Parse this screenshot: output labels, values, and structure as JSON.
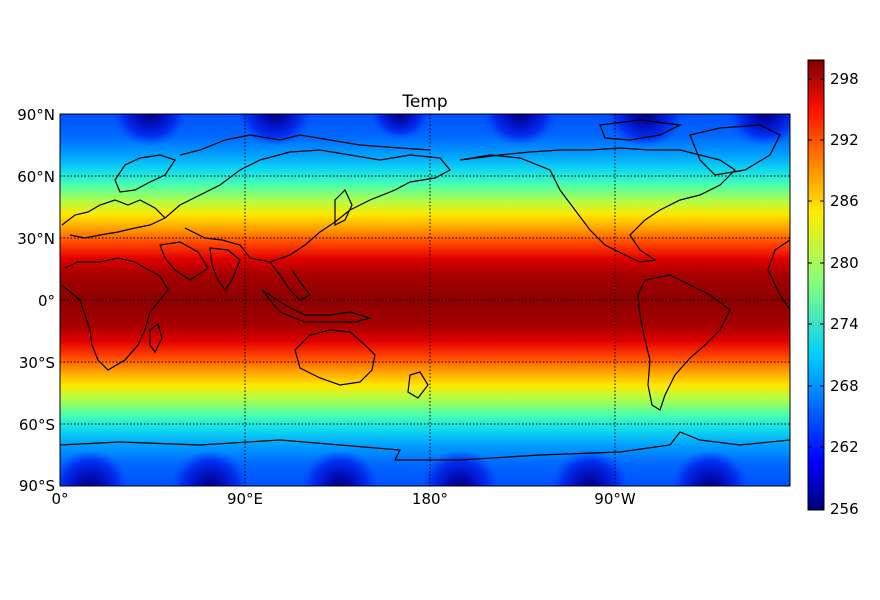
{
  "chart_data": {
    "type": "heatmap",
    "title": "Temp",
    "xlabel": "",
    "ylabel": "",
    "x_ticks": [
      "0°",
      "90°E",
      "180°",
      "90°W"
    ],
    "y_ticks": [
      "90°N",
      "60°N",
      "30°N",
      "0°",
      "30°S",
      "60°S",
      "90°S"
    ],
    "colorbar": {
      "ticks": [
        "298",
        "292",
        "286",
        "280",
        "274",
        "268",
        "262",
        "256"
      ],
      "range": [
        256,
        300
      ]
    },
    "grid": true,
    "colormap": "jet"
  }
}
